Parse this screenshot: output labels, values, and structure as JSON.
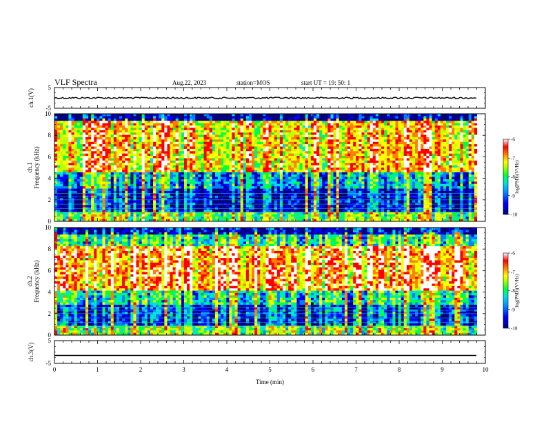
{
  "header": {
    "title": "VLF Spectra",
    "date": "Aug.22, 2023",
    "station": "station=MOS",
    "start_ut": "start UT =   19: 50: 1"
  },
  "chart_data": [
    {
      "type": "line",
      "panel": "ch1-waveform",
      "ylabel": "ch.1(V)",
      "ylim": [
        -5,
        5
      ],
      "y_ticks": [
        "5",
        "-5"
      ],
      "xlim": [
        0,
        10
      ],
      "series": [
        {
          "values_note_constant": 0.0,
          "y": [
            0.0
          ]
        }
      ]
    },
    {
      "type": "heatmap",
      "panel": "ch1-spectrogram",
      "ylabel": "ch.1\nFrequency (kHz)",
      "ylim": [
        0,
        10
      ],
      "y_ticks": [
        "0",
        "2",
        "4",
        "6",
        "8",
        "10"
      ],
      "xlim": [
        0,
        10
      ],
      "colorbar": {
        "label": "log(PSD)(V²/Hz)",
        "ticks": [
          "-6",
          "-7",
          "-8",
          "-9",
          "-10"
        ],
        "range": [
          -10,
          -6
        ]
      }
    },
    {
      "type": "heatmap",
      "panel": "ch2-spectrogram",
      "ylabel": "ch.2\nFrequency (kHz)",
      "ylim": [
        0,
        10
      ],
      "y_ticks": [
        "0",
        "2",
        "4",
        "6",
        "8",
        "10"
      ],
      "xlim": [
        0,
        10
      ],
      "colorbar": {
        "label": "log(PSD)(V²/Hz)",
        "ticks": [
          "-6",
          "-7",
          "-8",
          "-9",
          "-10"
        ],
        "range": [
          -10,
          -6
        ]
      }
    },
    {
      "type": "line",
      "panel": "ch3-waveform",
      "ylabel": "ch.3(V)",
      "ylim": [
        -5,
        5
      ],
      "y_ticks": [
        "5",
        "-5"
      ],
      "xlabel": "Time (min)",
      "xlim": [
        0,
        10
      ],
      "x_ticks": [
        "0",
        "1",
        "2",
        "3",
        "4",
        "5",
        "6",
        "7",
        "8",
        "9",
        "10"
      ],
      "series": [
        {
          "y": [
            -1.5
          ]
        }
      ]
    }
  ],
  "colors": {
    "colormap": [
      "#000080",
      "#0000ff",
      "#0080ff",
      "#00e0e0",
      "#00ff40",
      "#c0ff00",
      "#ffff00",
      "#ff8000",
      "#ff0000",
      "#ffffff"
    ]
  }
}
